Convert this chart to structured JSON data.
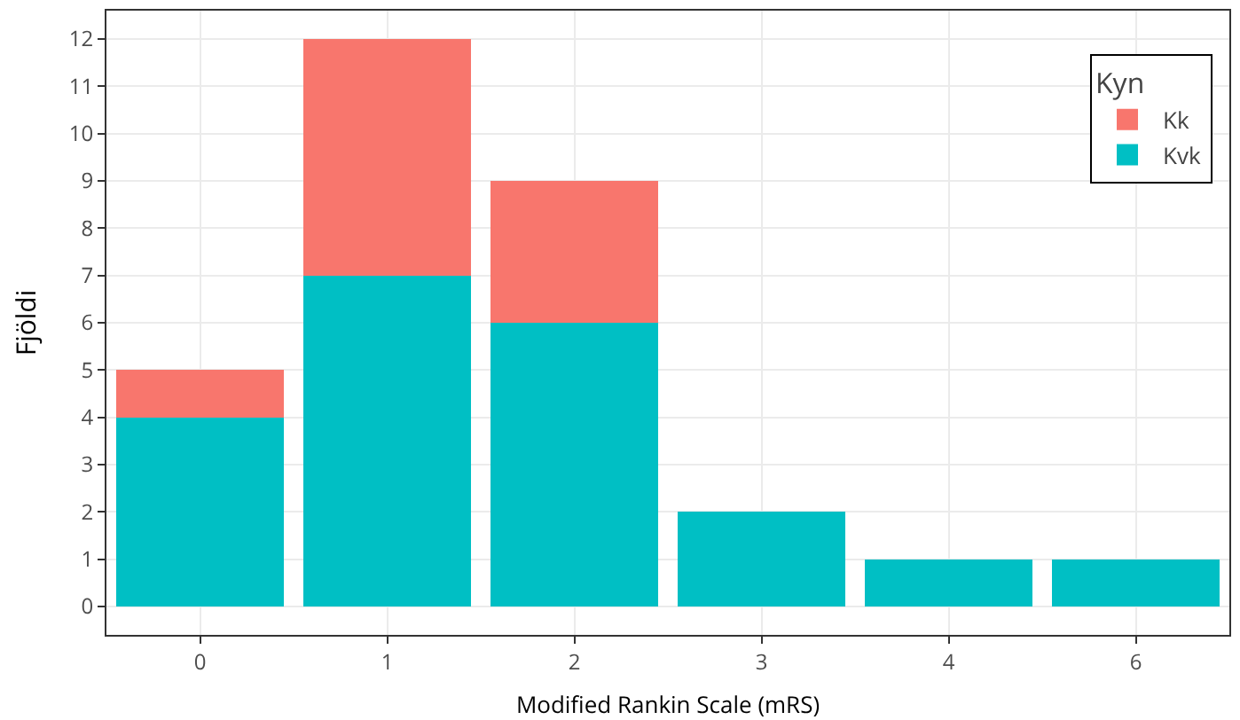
{
  "chart_data": {
    "type": "bar",
    "xlabel": "Modified Rankin Scale (mRS)",
    "ylabel": "Fjöldi",
    "legend_title": "Kyn",
    "categories": [
      "0",
      "1",
      "2",
      "3",
      "4",
      "6"
    ],
    "series": [
      {
        "name": "Kvk",
        "color": "#00bfc4",
        "values": [
          4,
          7,
          6,
          2,
          1,
          1
        ]
      },
      {
        "name": "Kk",
        "color": "#f8766d",
        "values": [
          1,
          5,
          3,
          0,
          0,
          0
        ]
      }
    ],
    "stacked": true,
    "ylim": [
      -0.6,
      12.6
    ],
    "yticks": [
      0,
      1,
      2,
      3,
      4,
      5,
      6,
      7,
      8,
      9,
      10,
      11,
      12
    ],
    "grid": true,
    "legend": "top right"
  }
}
